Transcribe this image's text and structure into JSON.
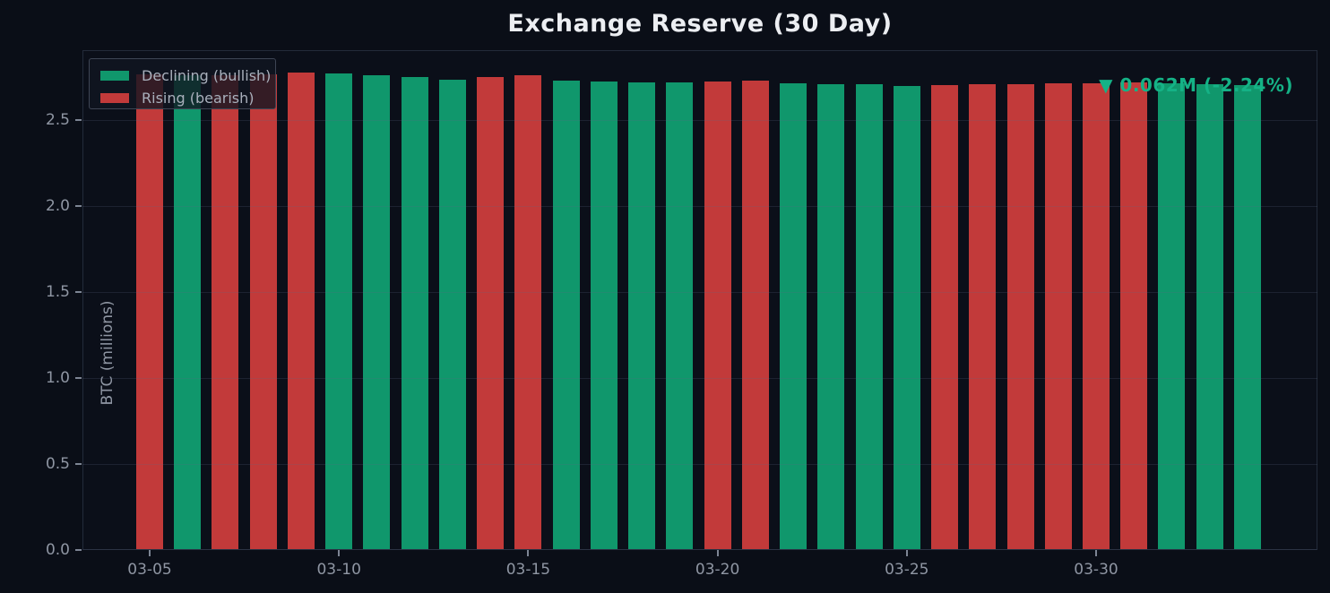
{
  "title": "Exchange Reserve (30 Day)",
  "colors": {
    "background": "#0a0e17",
    "bar_green": "#10976c",
    "bar_red": "#c23a3a",
    "annotation_text": "#15b286",
    "title_text": "#eceef2",
    "tick_text": "#8f96a3",
    "legend_text": "#a9b0bc"
  },
  "legend": {
    "items": [
      {
        "label": "Declining (bullish)",
        "color": "#10976c",
        "direction_key": "declining"
      },
      {
        "label": "Rising (bearish)",
        "color": "#c23a3a",
        "direction_key": "rising"
      }
    ]
  },
  "annotation": {
    "icon": "down-triangle",
    "text": "▼ 0.062M (-2.24%)",
    "change_abs": "-0.062M",
    "change_pct": "-2.24%"
  },
  "chart_data": {
    "type": "bar",
    "title": "Exchange Reserve (30 Day)",
    "xlabel": "",
    "ylabel": "BTC (millions)",
    "ylim": [
      0,
      2.9
    ],
    "grid": "horizontal",
    "legend_position": "upper-left",
    "y_tick_labels": [
      "0.0",
      "0.5",
      "1.0",
      "1.5",
      "2.0",
      "2.5"
    ],
    "x_tick_labels": [
      "03-05",
      "03-10",
      "03-15",
      "03-20",
      "03-25",
      "03-30"
    ],
    "categories": [
      "03-05",
      "03-06",
      "03-07",
      "03-08",
      "03-09",
      "03-10",
      "03-11",
      "03-12",
      "03-13",
      "03-14",
      "03-15",
      "03-16",
      "03-17",
      "03-18",
      "03-19",
      "03-20",
      "03-21",
      "03-22",
      "03-23",
      "03-24",
      "03-25",
      "03-26",
      "03-27",
      "03-28",
      "03-29",
      "03-30",
      "03-31",
      "04-01",
      "04-02",
      "04-03"
    ],
    "series": [
      {
        "name": "Exchange Reserve",
        "values": [
          2.768,
          2.762,
          2.764,
          2.768,
          2.776,
          2.772,
          2.762,
          2.75,
          2.738,
          2.75,
          2.764,
          2.73,
          2.726,
          2.72,
          2.718,
          2.728,
          2.73,
          2.717,
          2.712,
          2.708,
          2.702,
          2.706,
          2.71,
          2.712,
          2.714,
          2.716,
          2.718,
          2.714,
          2.71,
          2.706
        ],
        "directions": [
          "rising",
          "declining",
          "rising",
          "rising",
          "rising",
          "declining",
          "declining",
          "declining",
          "declining",
          "rising",
          "rising",
          "declining",
          "declining",
          "declining",
          "declining",
          "rising",
          "rising",
          "declining",
          "declining",
          "declining",
          "declining",
          "rising",
          "rising",
          "rising",
          "rising",
          "rising",
          "rising",
          "declining",
          "declining",
          "declining"
        ]
      }
    ]
  }
}
